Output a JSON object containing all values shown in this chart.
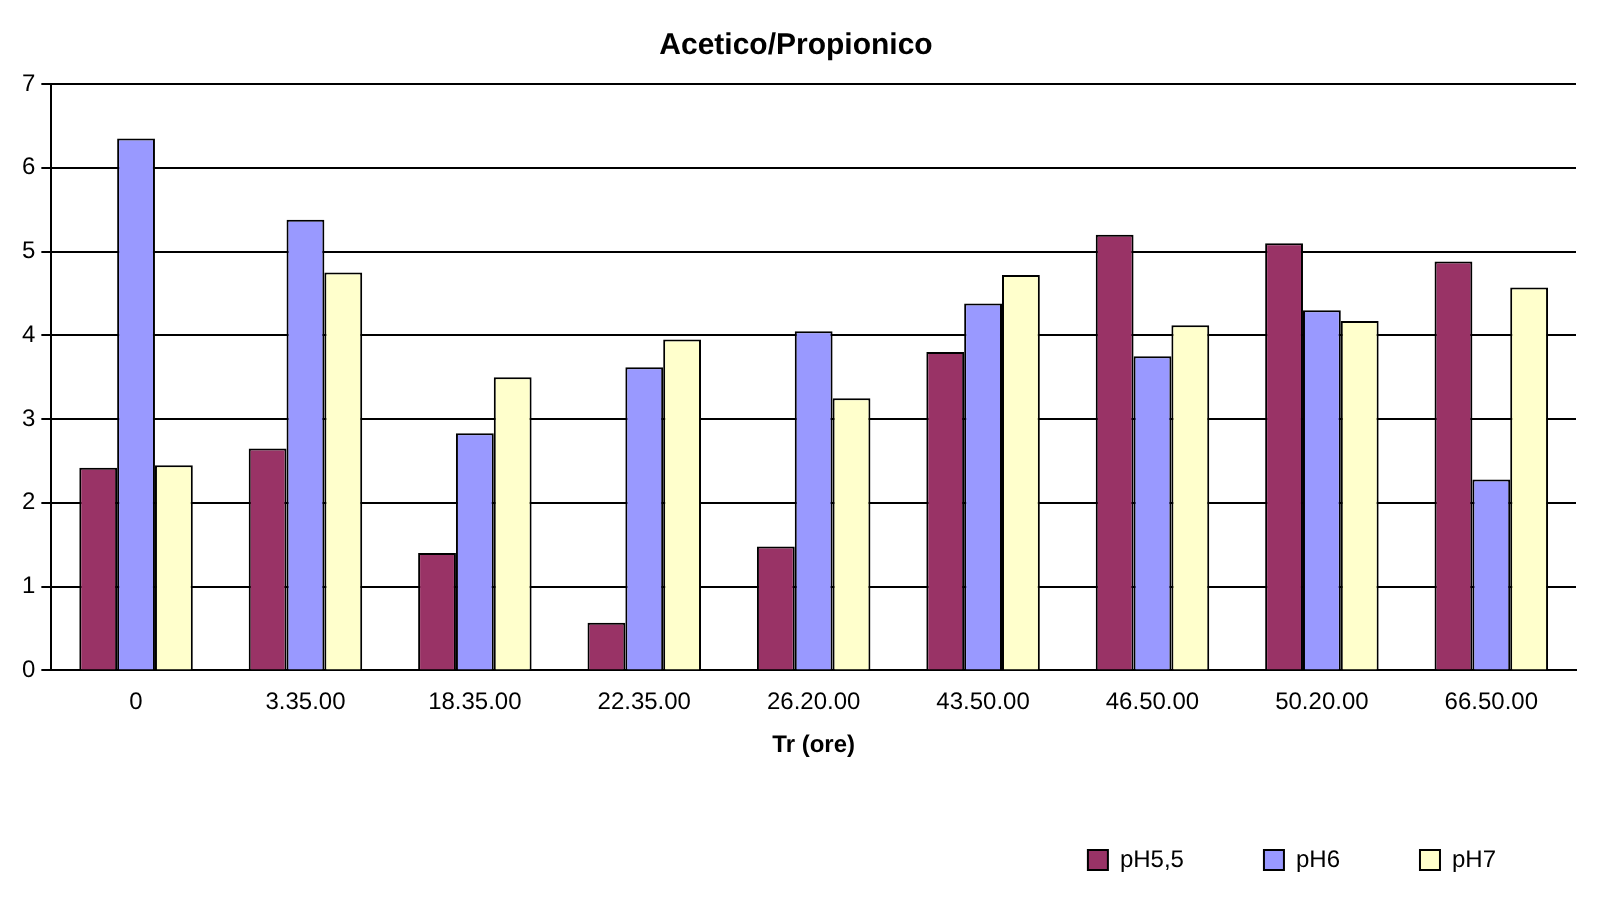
{
  "chart_data": {
    "type": "bar",
    "title": "Acetico/Propionico",
    "xlabel": "Tr (ore)",
    "categories": [
      "0",
      "3.35.00",
      "18.35.00",
      "22.35.00",
      "26.20.00",
      "43.50.00",
      "46.50.00",
      "50.20.00",
      "66.50.00"
    ],
    "series": [
      {
        "name": "pH5,5",
        "color": "#993366",
        "values": [
          2.42,
          2.65,
          1.4,
          0.57,
          1.48,
          3.8,
          5.2,
          5.1,
          4.88
        ]
      },
      {
        "name": "pH6",
        "color": "#9999ff",
        "values": [
          6.35,
          5.38,
          2.83,
          3.62,
          4.05,
          4.38,
          3.75,
          4.3,
          2.28
        ]
      },
      {
        "name": "pH7",
        "color": "#ffffcc",
        "values": [
          2.45,
          4.75,
          3.5,
          3.95,
          3.25,
          4.72,
          4.12,
          4.17,
          4.57
        ]
      }
    ],
    "ylim": [
      0,
      7
    ],
    "yticks": [
      0,
      1,
      2,
      3,
      4,
      5,
      6,
      7
    ],
    "grid": "y",
    "legend": "bottom right"
  }
}
